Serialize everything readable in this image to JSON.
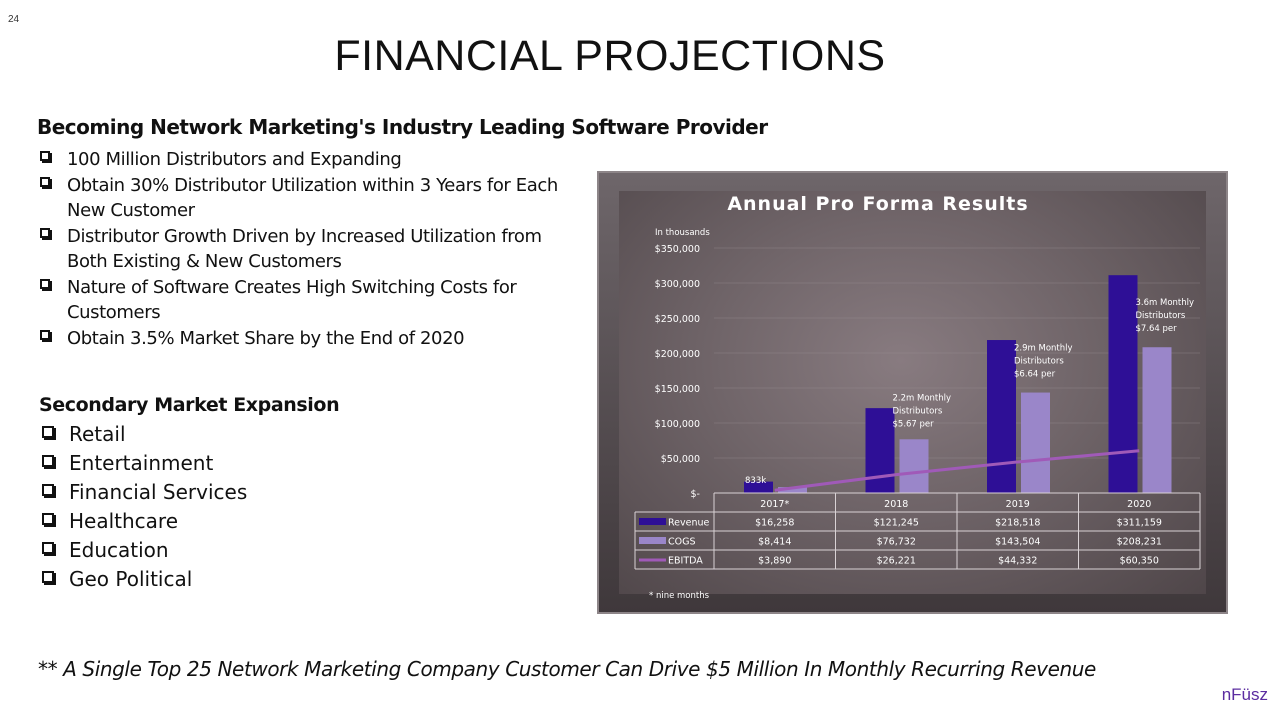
{
  "page_number": "24",
  "title": "FINANCIAL PROJECTIONS",
  "section1": {
    "heading": "Becoming Network Marketing's Industry Leading Software Provider",
    "items": [
      "100 Million Distributors and Expanding",
      "Obtain 30% Distributor Utilization within 3 Years for Each New Customer",
      "Distributor Growth Driven by Increased Utilization from Both Existing & New Customers",
      "Nature of Software Creates High Switching Costs for Customers",
      "Obtain 3.5% Market Share by the End of 2020"
    ]
  },
  "section2": {
    "heading": "Secondary Market Expansion",
    "items": [
      "Retail",
      "Entertainment",
      "Financial Services",
      "Healthcare",
      "Education",
      "Geo Political"
    ]
  },
  "footnote": "** A Single Top 25 Network Marketing Company Customer Can Drive $5 Million In Monthly Recurring Revenue",
  "brand": "nFüsz",
  "colors": {
    "revenue": "#2e0f96",
    "cogs": "#9a86c9",
    "ebitda": "#a05ab8",
    "panel": "#5b5255"
  },
  "chart_data": {
    "type": "bar",
    "title": "Annual Pro Forma Results",
    "units_note": "In thousands",
    "categories": [
      "2017*",
      "2018",
      "2019",
      "2020"
    ],
    "ylim": [
      0,
      350000
    ],
    "y_ticks": [
      0,
      50000,
      100000,
      150000,
      200000,
      250000,
      300000,
      350000
    ],
    "y_tick_labels": [
      "$-",
      "$50,000",
      "$100,000",
      "$150,000",
      "$200,000",
      "$250,000",
      "$300,000",
      "$350,000"
    ],
    "grid": true,
    "series": [
      {
        "name": "Revenue",
        "type": "bar",
        "values": [
          16258,
          121245,
          218518,
          311159
        ],
        "labels": [
          "$16,258",
          "$121,245",
          "$218,518",
          "$311,159"
        ]
      },
      {
        "name": "COGS",
        "type": "bar",
        "values": [
          8414,
          76732,
          143504,
          208231
        ],
        "labels": [
          "$8,414",
          "$76,732",
          "$143,504",
          "$208,231"
        ]
      },
      {
        "name": "EBITDA",
        "type": "line",
        "values": [
          3890,
          26221,
          44332,
          60350
        ],
        "labels": [
          "$3,890",
          "$26,221",
          "$44,332",
          "$60,350"
        ]
      }
    ],
    "annotations": [
      {
        "category": "2017*",
        "lines": [
          "833k"
        ]
      },
      {
        "category": "2018",
        "lines": [
          "2.2m Monthly",
          "Distributors",
          "$5.67 per"
        ]
      },
      {
        "category": "2019",
        "lines": [
          "2.9m Monthly",
          "Distributors",
          "$6.64 per"
        ]
      },
      {
        "category": "2020",
        "lines": [
          "3.6m Monthly",
          "Distributors",
          "$7.64 per"
        ]
      }
    ],
    "footnote": "* nine months",
    "legend": "data-table"
  }
}
